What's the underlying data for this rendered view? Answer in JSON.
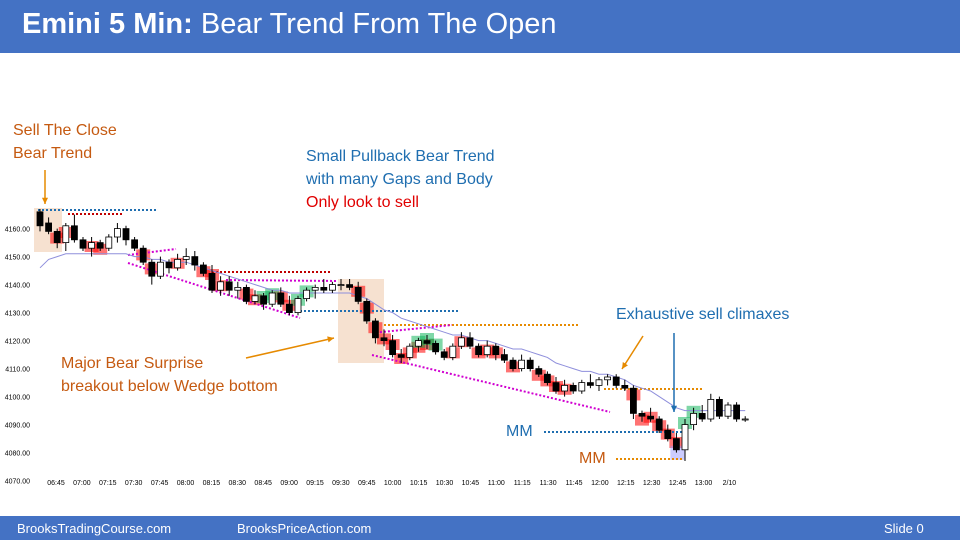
{
  "header": {
    "title_bold": "Emini 5 Min:",
    "title_rest": "Bear Trend From The Open"
  },
  "footer": {
    "left": "BrooksTradingCourse.com",
    "center": "BrooksPriceAction.com",
    "right": "Slide 0"
  },
  "annotations": {
    "sell_close_1": "Sell The Close",
    "sell_close_2": "Bear Trend",
    "small_pb_1": "Small Pullback Bear Trend",
    "small_pb_2": "with many Gaps and Body",
    "only_sell": "Only look to sell",
    "surprise_1": "Major Bear Surprise",
    "surprise_2": "breakout below Wedge bottom",
    "exhaustive": "Exhaustive sell climaxes",
    "mm1": "MM",
    "mm2": "MM"
  },
  "colors": {
    "header": "#4472c4",
    "bull_body": "#ffffff",
    "bear_body": "#000000",
    "ema": "#8f8fdc",
    "bear_highlight": "#ff0000",
    "bull_highlight": "#00b050",
    "wedge_line": "#d000d0"
  },
  "chart_data": {
    "type": "candlestick",
    "ylim": [
      4065,
      4168
    ],
    "y_ticks": [
      "4160.00",
      "4150.00",
      "4140.00",
      "4130.00",
      "4120.00",
      "4110.00",
      "4100.00",
      "4090.00",
      "4080.00",
      "4070.00"
    ],
    "y_tick_values": [
      4160,
      4150,
      4140,
      4130,
      4120,
      4110,
      4100,
      4090,
      4080,
      4070
    ],
    "x_ticks": [
      "06:45",
      "07:00",
      "07:15",
      "07:30",
      "07:45",
      "08:00",
      "08:15",
      "08:30",
      "08:45",
      "09:00",
      "09:15",
      "09:30",
      "09:45",
      "10:00",
      "10:15",
      "10:30",
      "10:45",
      "11:00",
      "11:15",
      "11:30",
      "11:45",
      "12:00",
      "12:15",
      "12:30",
      "12:45",
      "13:00",
      "2/10"
    ],
    "bars": [
      [
        4166,
        4167,
        4159,
        4161
      ],
      [
        4162,
        4164,
        4158,
        4159
      ],
      [
        4159,
        4160,
        4153,
        4155
      ],
      [
        4155,
        4162,
        4152,
        4161
      ],
      [
        4161,
        4165,
        4155,
        4156
      ],
      [
        4156,
        4157,
        4152,
        4153
      ],
      [
        4153,
        4157,
        4150,
        4155
      ],
      [
        4155,
        4156,
        4152,
        4153
      ],
      [
        4153,
        4158,
        4152,
        4157
      ],
      [
        4157,
        4162,
        4155,
        4160
      ],
      [
        4160,
        4161,
        4154,
        4156
      ],
      [
        4156,
        4157,
        4152,
        4153
      ],
      [
        4153,
        4154,
        4147,
        4148
      ],
      [
        4148,
        4149,
        4140,
        4143
      ],
      [
        4143,
        4150,
        4142,
        4148
      ],
      [
        4148,
        4149,
        4144,
        4146
      ],
      [
        4146,
        4151,
        4145,
        4149
      ],
      [
        4149,
        4153,
        4147,
        4150
      ],
      [
        4150,
        4152,
        4145,
        4147
      ],
      [
        4147,
        4148,
        4143,
        4144
      ],
      [
        4144,
        4147,
        4137,
        4138
      ],
      [
        4138,
        4143,
        4136,
        4141
      ],
      [
        4141,
        4143,
        4136,
        4138
      ],
      [
        4138,
        4141,
        4135,
        4139
      ],
      [
        4139,
        4140,
        4133,
        4134
      ],
      [
        4134,
        4138,
        4133,
        4136
      ],
      [
        4136,
        4137,
        4131,
        4133
      ],
      [
        4133,
        4138,
        4132,
        4137
      ],
      [
        4137,
        4139,
        4132,
        4133
      ],
      [
        4133,
        4136,
        4129,
        4130
      ],
      [
        4130,
        4136,
        4129,
        4135
      ],
      [
        4135,
        4139,
        4134,
        4138
      ],
      [
        4138,
        4140,
        4135,
        4139
      ],
      [
        4139,
        4142,
        4137,
        4138
      ],
      [
        4138,
        4141,
        4137,
        4140
      ],
      [
        4140,
        4142,
        4138,
        4140
      ],
      [
        4140,
        4142,
        4138,
        4139
      ],
      [
        4139,
        4141,
        4133,
        4134
      ],
      [
        4134,
        4135,
        4126,
        4127
      ],
      [
        4127,
        4128,
        4119,
        4121
      ],
      [
        4121,
        4124,
        4118,
        4120
      ],
      [
        4120,
        4122,
        4114,
        4115
      ],
      [
        4115,
        4117,
        4112,
        4114
      ],
      [
        4114,
        4119,
        4113,
        4118
      ],
      [
        4118,
        4121,
        4116,
        4120
      ],
      [
        4120,
        4122,
        4117,
        4119
      ],
      [
        4119,
        4120,
        4115,
        4116
      ],
      [
        4116,
        4117,
        4113,
        4114
      ],
      [
        4114,
        4119,
        4113,
        4118
      ],
      [
        4118,
        4123,
        4117,
        4121
      ],
      [
        4121,
        4123,
        4117,
        4118
      ],
      [
        4118,
        4119,
        4114,
        4115
      ],
      [
        4115,
        4120,
        4114,
        4118
      ],
      [
        4118,
        4119,
        4113,
        4115
      ],
      [
        4115,
        4117,
        4112,
        4113
      ],
      [
        4113,
        4114,
        4109,
        4110
      ],
      [
        4110,
        4115,
        4109,
        4113
      ],
      [
        4113,
        4114,
        4109,
        4110
      ],
      [
        4110,
        4111,
        4107,
        4108
      ],
      [
        4108,
        4109,
        4104,
        4105
      ],
      [
        4105,
        4107,
        4101,
        4102
      ],
      [
        4102,
        4106,
        4100,
        4104
      ],
      [
        4104,
        4105,
        4101,
        4102
      ],
      [
        4102,
        4106,
        4101,
        4105
      ],
      [
        4105,
        4108,
        4103,
        4104
      ],
      [
        4104,
        4107,
        4102,
        4106
      ],
      [
        4106,
        4108,
        4104,
        4107
      ],
      [
        4107,
        4108,
        4103,
        4104
      ],
      [
        4104,
        4106,
        4102,
        4103
      ],
      [
        4103,
        4104,
        4092,
        4094
      ],
      [
        4094,
        4095,
        4091,
        4093
      ],
      [
        4093,
        4096,
        4091,
        4092
      ],
      [
        4092,
        4093,
        4087,
        4088
      ],
      [
        4088,
        4090,
        4084,
        4085
      ],
      [
        4085,
        4087,
        4080,
        4081
      ],
      [
        4081,
        4092,
        4077,
        4090
      ],
      [
        4090,
        4096,
        4088,
        4094
      ],
      [
        4094,
        4097,
        4091,
        4092
      ],
      [
        4092,
        4101,
        4091,
        4099
      ],
      [
        4099,
        4100,
        4092,
        4093
      ],
      [
        4093,
        4098,
        4092,
        4097
      ],
      [
        4097,
        4098,
        4091,
        4092
      ],
      [
        4092,
        4093,
        4091,
        4092
      ]
    ],
    "ema": [
      4146,
      4149,
      4150,
      4151,
      4151,
      4151,
      4151,
      4151,
      4151,
      4151,
      4151,
      4150,
      4150,
      4149,
      4149,
      4148,
      4148,
      4148,
      4147,
      4146,
      4145,
      4144,
      4143,
      4142,
      4141,
      4140,
      4139,
      4138,
      4138,
      4137,
      4137,
      4137,
      4137,
      4137,
      4137,
      4137,
      4137,
      4136,
      4135,
      4133,
      4131,
      4130,
      4128,
      4127,
      4126,
      4125,
      4124,
      4123,
      4122,
      4122,
      4121,
      4120,
      4120,
      4119,
      4118,
      4117,
      4117,
      4116,
      4115,
      4114,
      4112,
      4111,
      4110,
      4109,
      4109,
      4108,
      4108,
      4107,
      4106,
      4104,
      4103,
      4102,
      4100,
      4098,
      4096,
      4095,
      4095,
      4095,
      4095,
      4095,
      4095,
      4095,
      4095
    ]
  }
}
